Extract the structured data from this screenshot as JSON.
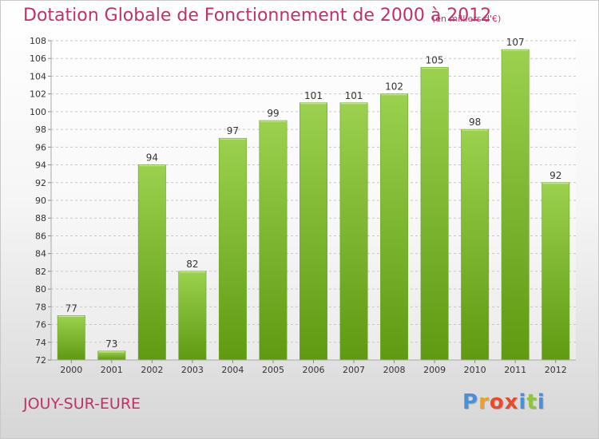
{
  "title": "Dotation Globale de Fonctionnement de 2000 à 2012",
  "unit": "(en milliers d'€)",
  "commune": "JOUY-SUR-EURE",
  "logo": {
    "letters": [
      "P",
      "r",
      "o",
      "x",
      "i",
      "t",
      "i"
    ],
    "colors": [
      "#4a90d9",
      "#f0a020",
      "#e84a2a",
      "#e84a2a",
      "#4a90d9",
      "#8cc63f",
      "#4a90d9"
    ]
  },
  "colors": {
    "accent": "#c0306a",
    "bar_top": "#9bd14e",
    "bar_bottom": "#5f9a12",
    "grid": "#c8c8c8",
    "axis_text": "#333333"
  },
  "chart_data": {
    "type": "bar",
    "title": "Dotation Globale de Fonctionnement de 2000 à 2012",
    "xlabel": "",
    "ylabel": "",
    "categories": [
      "2000",
      "2001",
      "2002",
      "2003",
      "2004",
      "2005",
      "2006",
      "2007",
      "2008",
      "2009",
      "2010",
      "2011",
      "2012"
    ],
    "values": [
      77,
      73,
      94,
      82,
      97,
      99,
      101,
      101,
      102,
      105,
      98,
      107,
      92
    ],
    "ylim": [
      72,
      108
    ],
    "yticks": [
      72,
      74,
      76,
      78,
      80,
      82,
      84,
      86,
      88,
      90,
      92,
      94,
      96,
      98,
      100,
      102,
      104,
      106,
      108
    ],
    "grid": true,
    "data_labels": true,
    "legend": "none"
  }
}
